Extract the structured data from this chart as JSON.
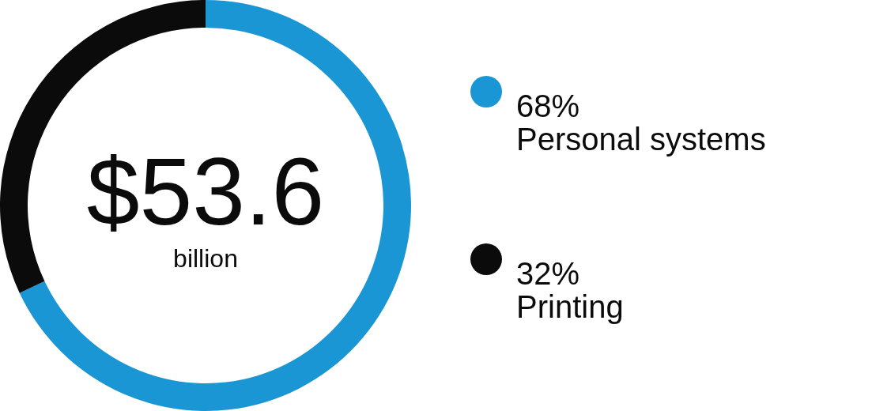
{
  "chart_data": {
    "type": "donut",
    "categories": [
      "Personal systems",
      "Printing"
    ],
    "values": [
      68,
      32
    ],
    "colors": [
      "#1a96d4",
      "#0b0b0c"
    ],
    "value_labels": [
      "68%",
      "32%"
    ],
    "legend": "right",
    "annotations": [
      "$53.6",
      "billion"
    ]
  }
}
